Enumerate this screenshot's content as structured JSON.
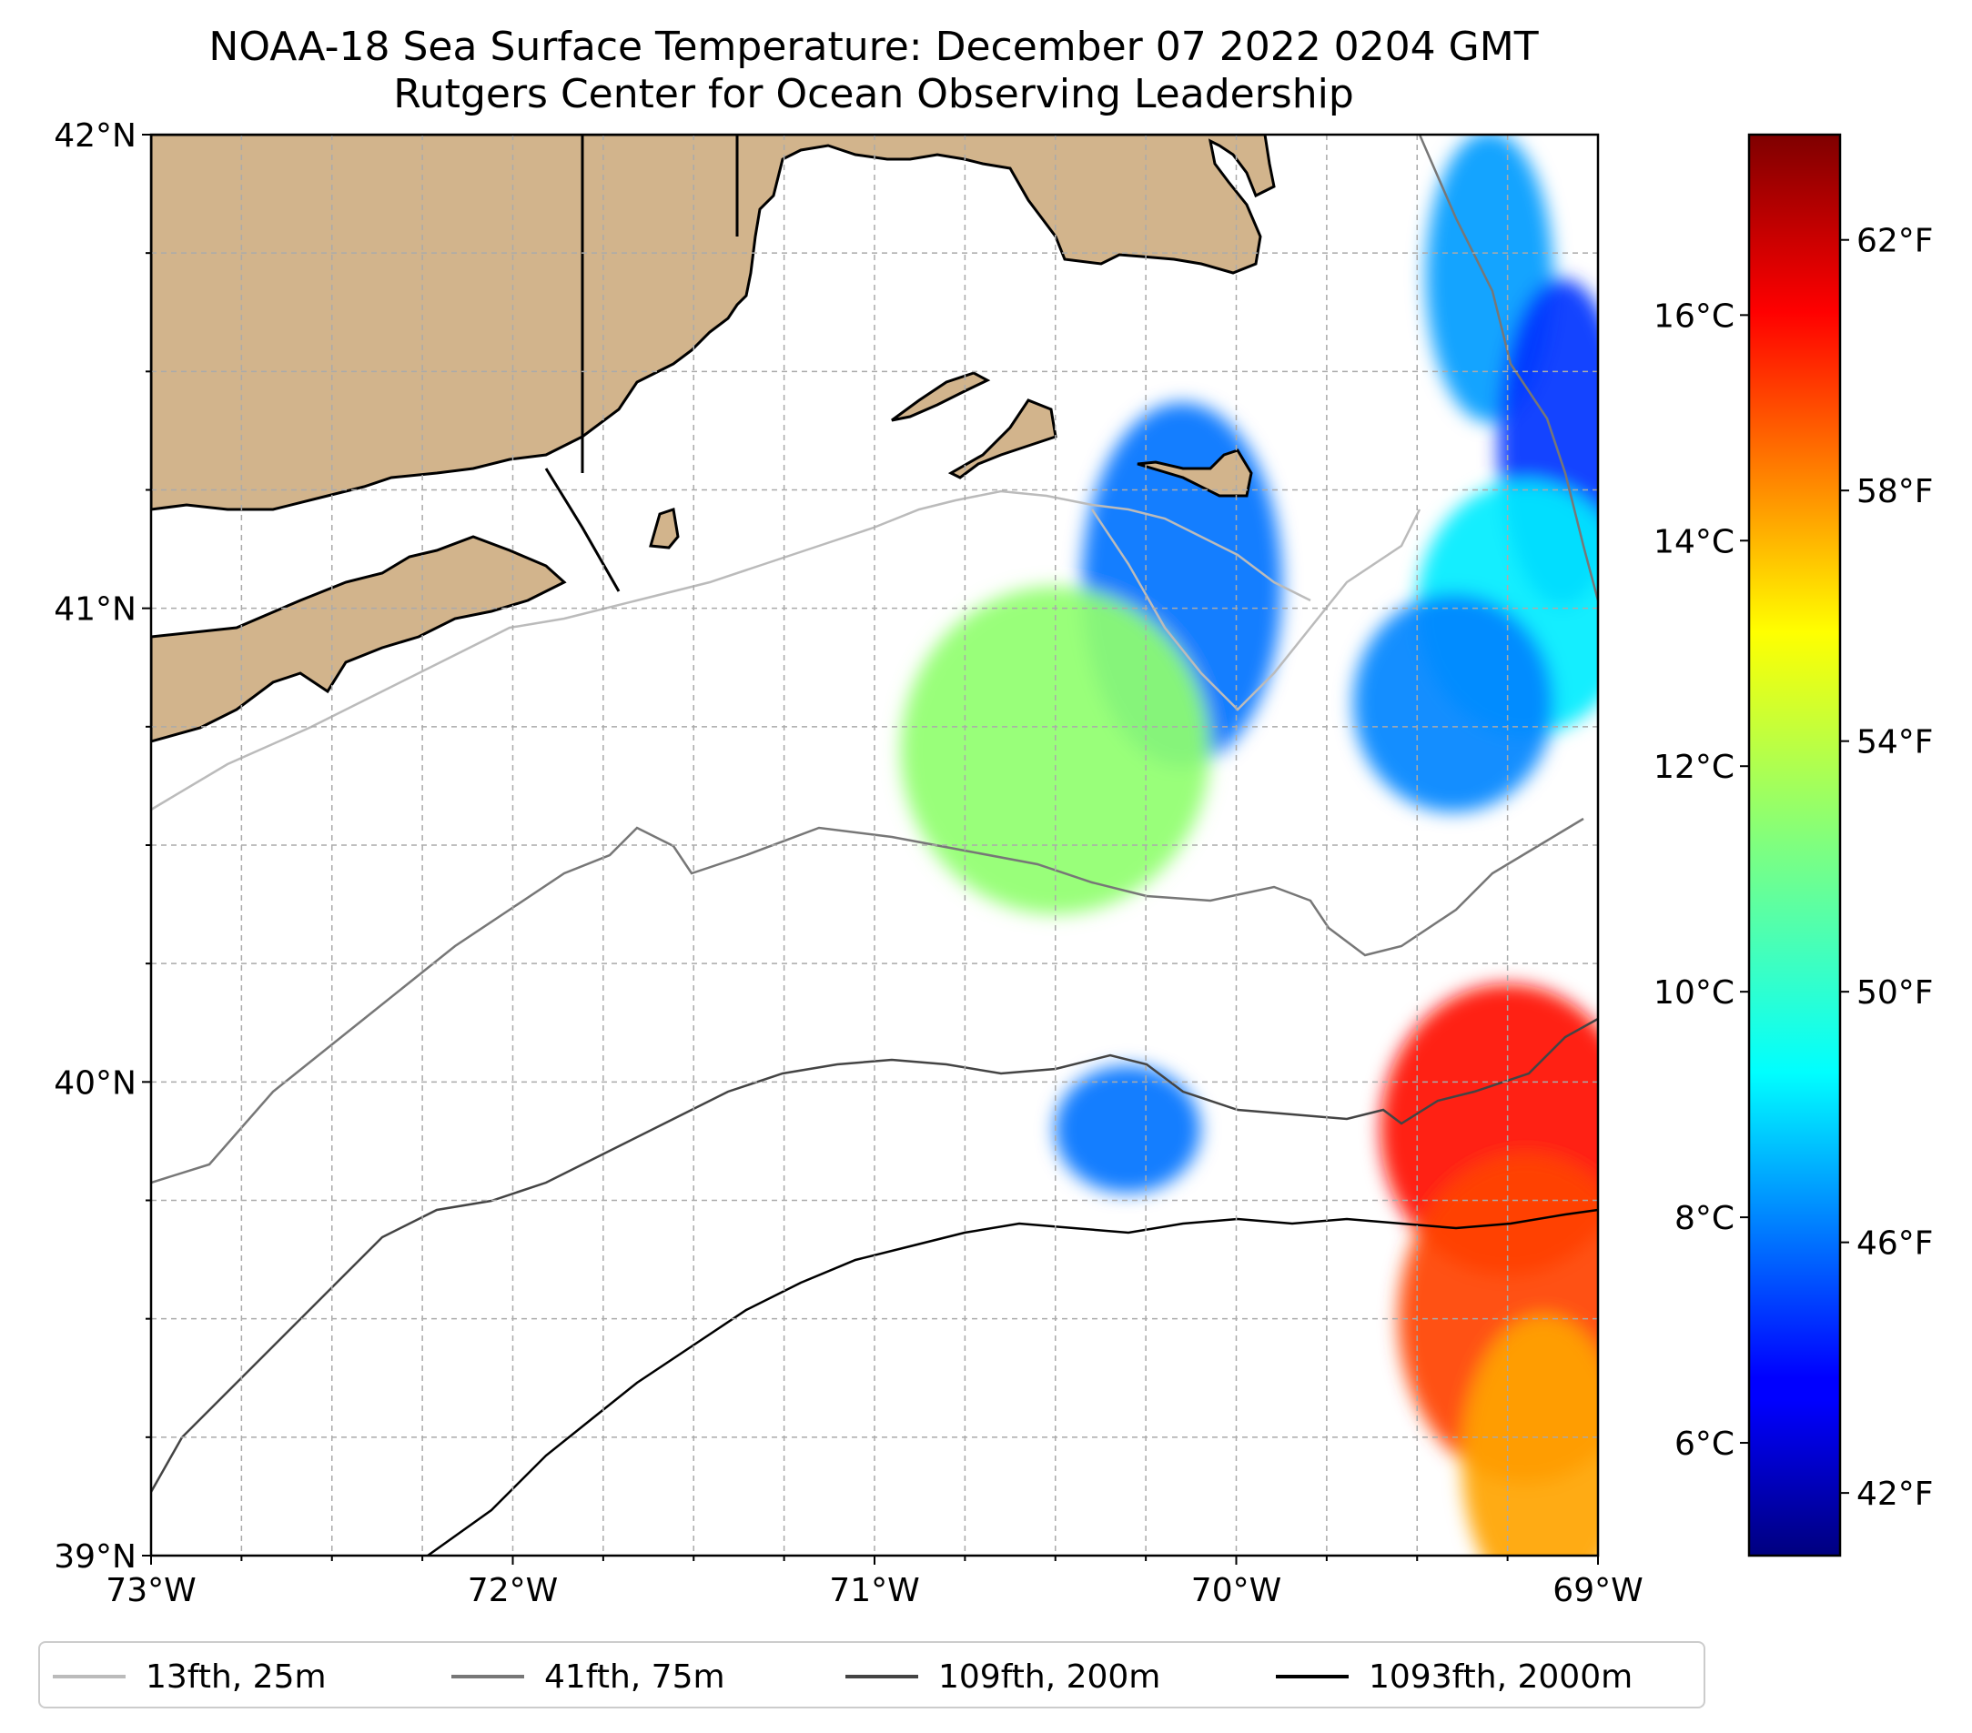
{
  "title": "NOAA-18 Sea Surface Temperature: December 07 2022 0204 GMT",
  "subtitle": "Rutgers Center for Ocean Observing Leadership",
  "map": {
    "lon_range": [
      -73,
      -69
    ],
    "lat_range": [
      39,
      42
    ],
    "x_ticks": [
      {
        "value": -73,
        "label": "73°W"
      },
      {
        "value": -72,
        "label": "72°W"
      },
      {
        "value": -71,
        "label": "71°W"
      },
      {
        "value": -70,
        "label": "70°W"
      },
      {
        "value": -69,
        "label": "69°W"
      }
    ],
    "y_ticks": [
      {
        "value": 39,
        "label": "39°N"
      },
      {
        "value": 40,
        "label": "40°N"
      },
      {
        "value": 41,
        "label": "41°N"
      },
      {
        "value": 42,
        "label": "42°N"
      }
    ],
    "land_color": "#d2b48c",
    "grid": "dashed"
  },
  "colorbar": {
    "colormap": "jet",
    "celsius_range": [
      5.0,
      17.6
    ],
    "celsius_ticks": [
      {
        "value": 6,
        "label": "6°C"
      },
      {
        "value": 8,
        "label": "8°C"
      },
      {
        "value": 10,
        "label": "10°C"
      },
      {
        "value": 12,
        "label": "12°C"
      },
      {
        "value": 14,
        "label": "14°C"
      },
      {
        "value": 16,
        "label": "16°C"
      }
    ],
    "fahrenheit_ticks": [
      {
        "value": 42,
        "label": "42°F"
      },
      {
        "value": 46,
        "label": "46°F"
      },
      {
        "value": 50,
        "label": "50°F"
      },
      {
        "value": 54,
        "label": "54°F"
      },
      {
        "value": 58,
        "label": "58°F"
      },
      {
        "value": 62,
        "label": "62°F"
      }
    ]
  },
  "legend": {
    "items": [
      {
        "label": "13fth, 25m",
        "color": "#bbbbbb"
      },
      {
        "label": "41fth, 75m",
        "color": "#777777"
      },
      {
        "label": "109fth, 200m",
        "color": "#444444"
      },
      {
        "label": "1093fth, 2000m",
        "color": "#000000"
      }
    ]
  },
  "sst_patches": [
    {
      "lon": -69.3,
      "lat": 41.7,
      "temp": 8.5
    },
    {
      "lon": -69.1,
      "lat": 41.35,
      "temp": 7.2
    },
    {
      "lon": -69.2,
      "lat": 41.0,
      "temp": 9.5
    },
    {
      "lon": -69.4,
      "lat": 40.8,
      "temp": 8.2
    },
    {
      "lon": -70.15,
      "lat": 41.05,
      "temp": 8.0
    },
    {
      "lon": -70.5,
      "lat": 40.7,
      "temp": 11.5
    },
    {
      "lon": -69.25,
      "lat": 39.9,
      "temp": 15.8
    },
    {
      "lon": -69.2,
      "lat": 39.5,
      "temp": 15.2
    },
    {
      "lon": -69.15,
      "lat": 39.2,
      "temp": 14.0
    },
    {
      "lon": -70.3,
      "lat": 39.9,
      "temp": 8.0
    }
  ]
}
